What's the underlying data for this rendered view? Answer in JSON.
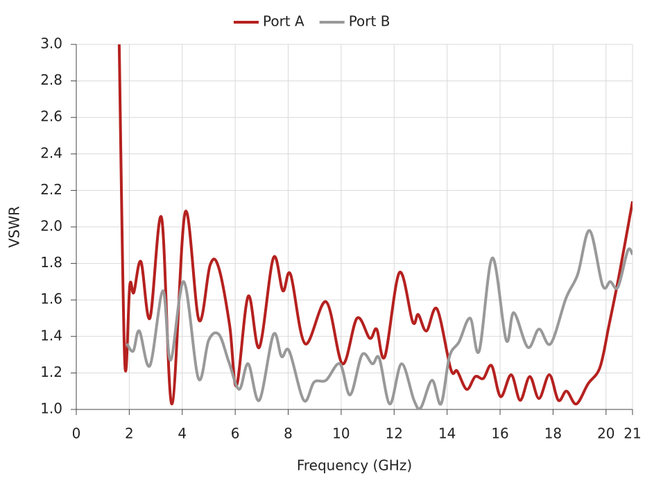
{
  "chart_data": {
    "type": "line",
    "x_label": "Frequency (GHz)",
    "y_label": "VSWR",
    "legend": "top",
    "grid": true,
    "xlim": [
      0,
      21
    ],
    "xticks": [
      0,
      2,
      4,
      6,
      8,
      10,
      12,
      14,
      16,
      18,
      20,
      21
    ],
    "ylim": [
      1,
      3
    ],
    "yticks": [
      {
        "value": 1,
        "label": "1.0"
      },
      1.2,
      1.4,
      1.6,
      1.8,
      {
        "value": 2,
        "label": "2.0"
      },
      2.2,
      2.4,
      2.6,
      2.8,
      {
        "value": 3,
        "label": "3.0"
      }
    ],
    "series": [
      {
        "name": "Port A",
        "color": "#b5211f",
        "x": [
          1.62,
          1.83,
          2.02,
          2.17,
          2.44,
          2.78,
          3.22,
          3.61,
          4.11,
          4.63,
          5.05,
          5.37,
          5.79,
          6.05,
          6.49,
          6.91,
          7.44,
          7.8,
          8.09,
          8.64,
          9.43,
          10.05,
          10.6,
          11.08,
          11.34,
          11.65,
          12.2,
          12.7,
          12.91,
          13.22,
          13.62,
          14.14,
          14.38,
          14.74,
          15.06,
          15.37,
          15.68,
          16.02,
          16.42,
          16.76,
          17.12,
          17.47,
          17.86,
          18.2,
          18.51,
          18.88,
          19.32,
          19.77,
          20.11,
          20.5,
          21
        ],
        "values": [
          3.0,
          1.26,
          1.68,
          1.64,
          1.81,
          1.5,
          2.05,
          1.03,
          2.08,
          1.49,
          1.79,
          1.78,
          1.46,
          1.13,
          1.62,
          1.34,
          1.83,
          1.65,
          1.74,
          1.36,
          1.59,
          1.25,
          1.5,
          1.39,
          1.44,
          1.29,
          1.75,
          1.48,
          1.52,
          1.43,
          1.55,
          1.22,
          1.21,
          1.11,
          1.18,
          1.17,
          1.24,
          1.07,
          1.19,
          1.05,
          1.18,
          1.06,
          1.19,
          1.05,
          1.1,
          1.03,
          1.14,
          1.23,
          1.46,
          1.74,
          2.14
        ]
      },
      {
        "name": "Port B",
        "color": "#999999",
        "x": [
          1.91,
          2.15,
          2.38,
          2.78,
          3.27,
          3.56,
          4.06,
          4.61,
          5.0,
          5.39,
          5.76,
          6.15,
          6.49,
          6.91,
          7.44,
          7.75,
          8.04,
          8.59,
          8.98,
          9.43,
          9.95,
          10.34,
          10.79,
          11.18,
          11.44,
          11.84,
          12.28,
          12.75,
          13.01,
          13.43,
          13.77,
          14.09,
          14.45,
          14.87,
          15.21,
          15.71,
          16.23,
          16.52,
          17.05,
          17.47,
          17.91,
          18.49,
          18.93,
          19.38,
          19.87,
          20.16,
          20.45,
          20.82,
          21
        ],
        "values": [
          1.36,
          1.32,
          1.43,
          1.24,
          1.65,
          1.27,
          1.7,
          1.17,
          1.38,
          1.41,
          1.26,
          1.11,
          1.25,
          1.05,
          1.41,
          1.29,
          1.32,
          1.05,
          1.15,
          1.16,
          1.25,
          1.08,
          1.3,
          1.25,
          1.28,
          1.03,
          1.25,
          1.05,
          1.01,
          1.16,
          1.03,
          1.29,
          1.37,
          1.5,
          1.32,
          1.83,
          1.38,
          1.53,
          1.34,
          1.44,
          1.36,
          1.61,
          1.74,
          1.98,
          1.68,
          1.7,
          1.67,
          1.87,
          1.85
        ]
      }
    ]
  }
}
